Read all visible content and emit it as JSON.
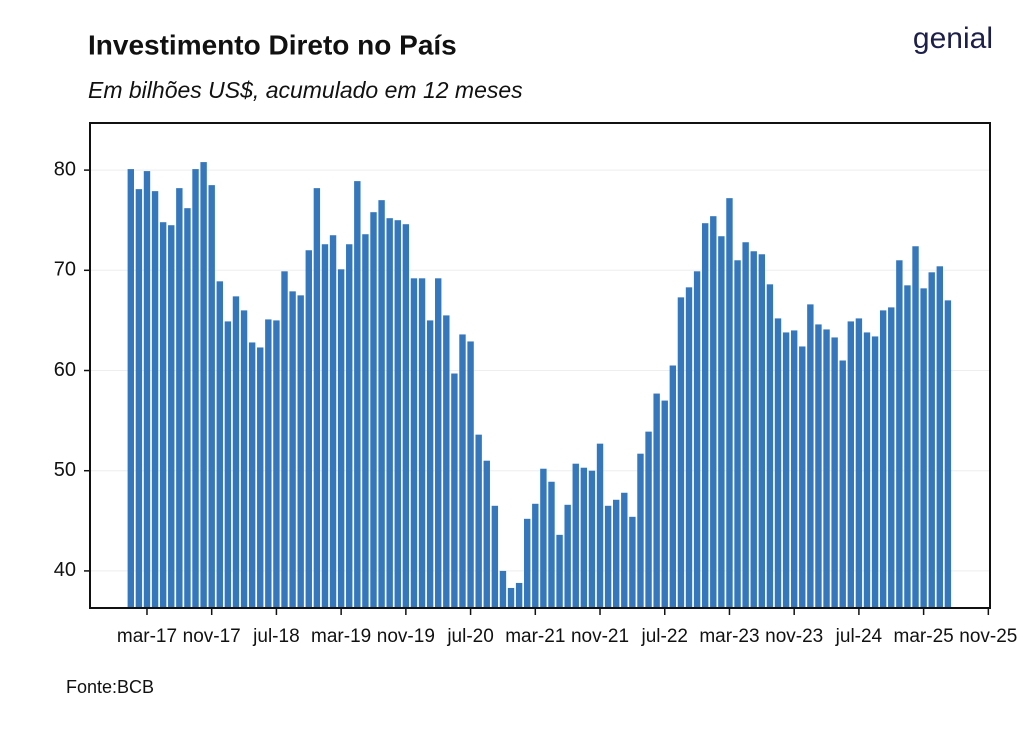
{
  "chart_data": {
    "type": "bar",
    "title": "Investimento Direto no País",
    "subtitle": "Em bilhões US$, acumulado em 12 meses",
    "source": "Fonte:BCB",
    "logo": "genial",
    "color": "#3477bd",
    "grid": true,
    "ylim": [
      36.3,
      84.7
    ],
    "yticks": [
      40,
      50,
      60,
      70,
      80
    ],
    "categories": [
      null,
      null,
      "mar-17",
      null,
      null,
      null,
      null,
      null,
      null,
      null,
      "nov-17",
      null,
      null,
      null,
      null,
      null,
      null,
      null,
      "jul-18",
      null,
      null,
      null,
      null,
      null,
      null,
      null,
      "mar-19",
      null,
      null,
      null,
      null,
      null,
      null,
      null,
      "nov-19",
      null,
      null,
      null,
      null,
      null,
      null,
      null,
      "jul-20",
      null,
      null,
      null,
      null,
      null,
      null,
      null,
      "mar-21",
      null,
      null,
      null,
      null,
      null,
      null,
      null,
      "nov-21",
      null,
      null,
      null,
      null,
      null,
      null,
      null,
      "jul-22",
      null,
      null,
      null,
      null,
      null,
      null,
      null,
      "mar-23",
      null,
      null,
      null,
      null,
      null,
      null,
      null,
      "nov-23",
      null,
      null,
      null,
      null,
      null,
      null,
      null,
      "jul-24",
      null,
      null,
      null,
      null,
      null,
      null,
      null,
      "mar-25",
      null,
      null,
      null,
      null,
      null,
      null,
      null,
      "nov-25"
    ],
    "values": [
      80.1,
      78.1,
      79.9,
      77.9,
      74.8,
      74.5,
      78.2,
      76.2,
      80.1,
      80.8,
      78.5,
      68.9,
      64.9,
      67.4,
      66.0,
      62.8,
      62.3,
      65.1,
      65.0,
      69.9,
      67.9,
      67.5,
      72.0,
      78.2,
      72.6,
      73.5,
      70.1,
      72.6,
      78.9,
      73.6,
      75.8,
      77.0,
      75.2,
      75.0,
      74.6,
      69.2,
      69.2,
      65.0,
      69.2,
      65.5,
      59.7,
      63.6,
      62.9,
      53.6,
      51.0,
      46.5,
      40.0,
      38.3,
      38.8,
      45.2,
      46.7,
      50.2,
      48.9,
      43.6,
      46.6,
      50.7,
      50.3,
      50.0,
      52.7,
      46.5,
      47.1,
      47.8,
      45.4,
      51.7,
      53.9,
      57.7,
      57.0,
      60.5,
      67.3,
      68.3,
      69.9,
      74.7,
      75.4,
      73.4,
      77.2,
      71.0,
      72.8,
      71.9,
      71.6,
      68.6,
      65.2,
      63.8,
      64.0,
      62.4,
      66.6,
      64.6,
      64.1,
      63.3,
      61.0,
      64.9,
      65.2,
      63.8,
      63.4,
      66.0,
      66.3,
      71.0,
      68.5,
      72.4,
      68.2,
      69.8,
      70.4,
      67.0,
      null,
      null,
      null,
      null,
      null
    ]
  }
}
